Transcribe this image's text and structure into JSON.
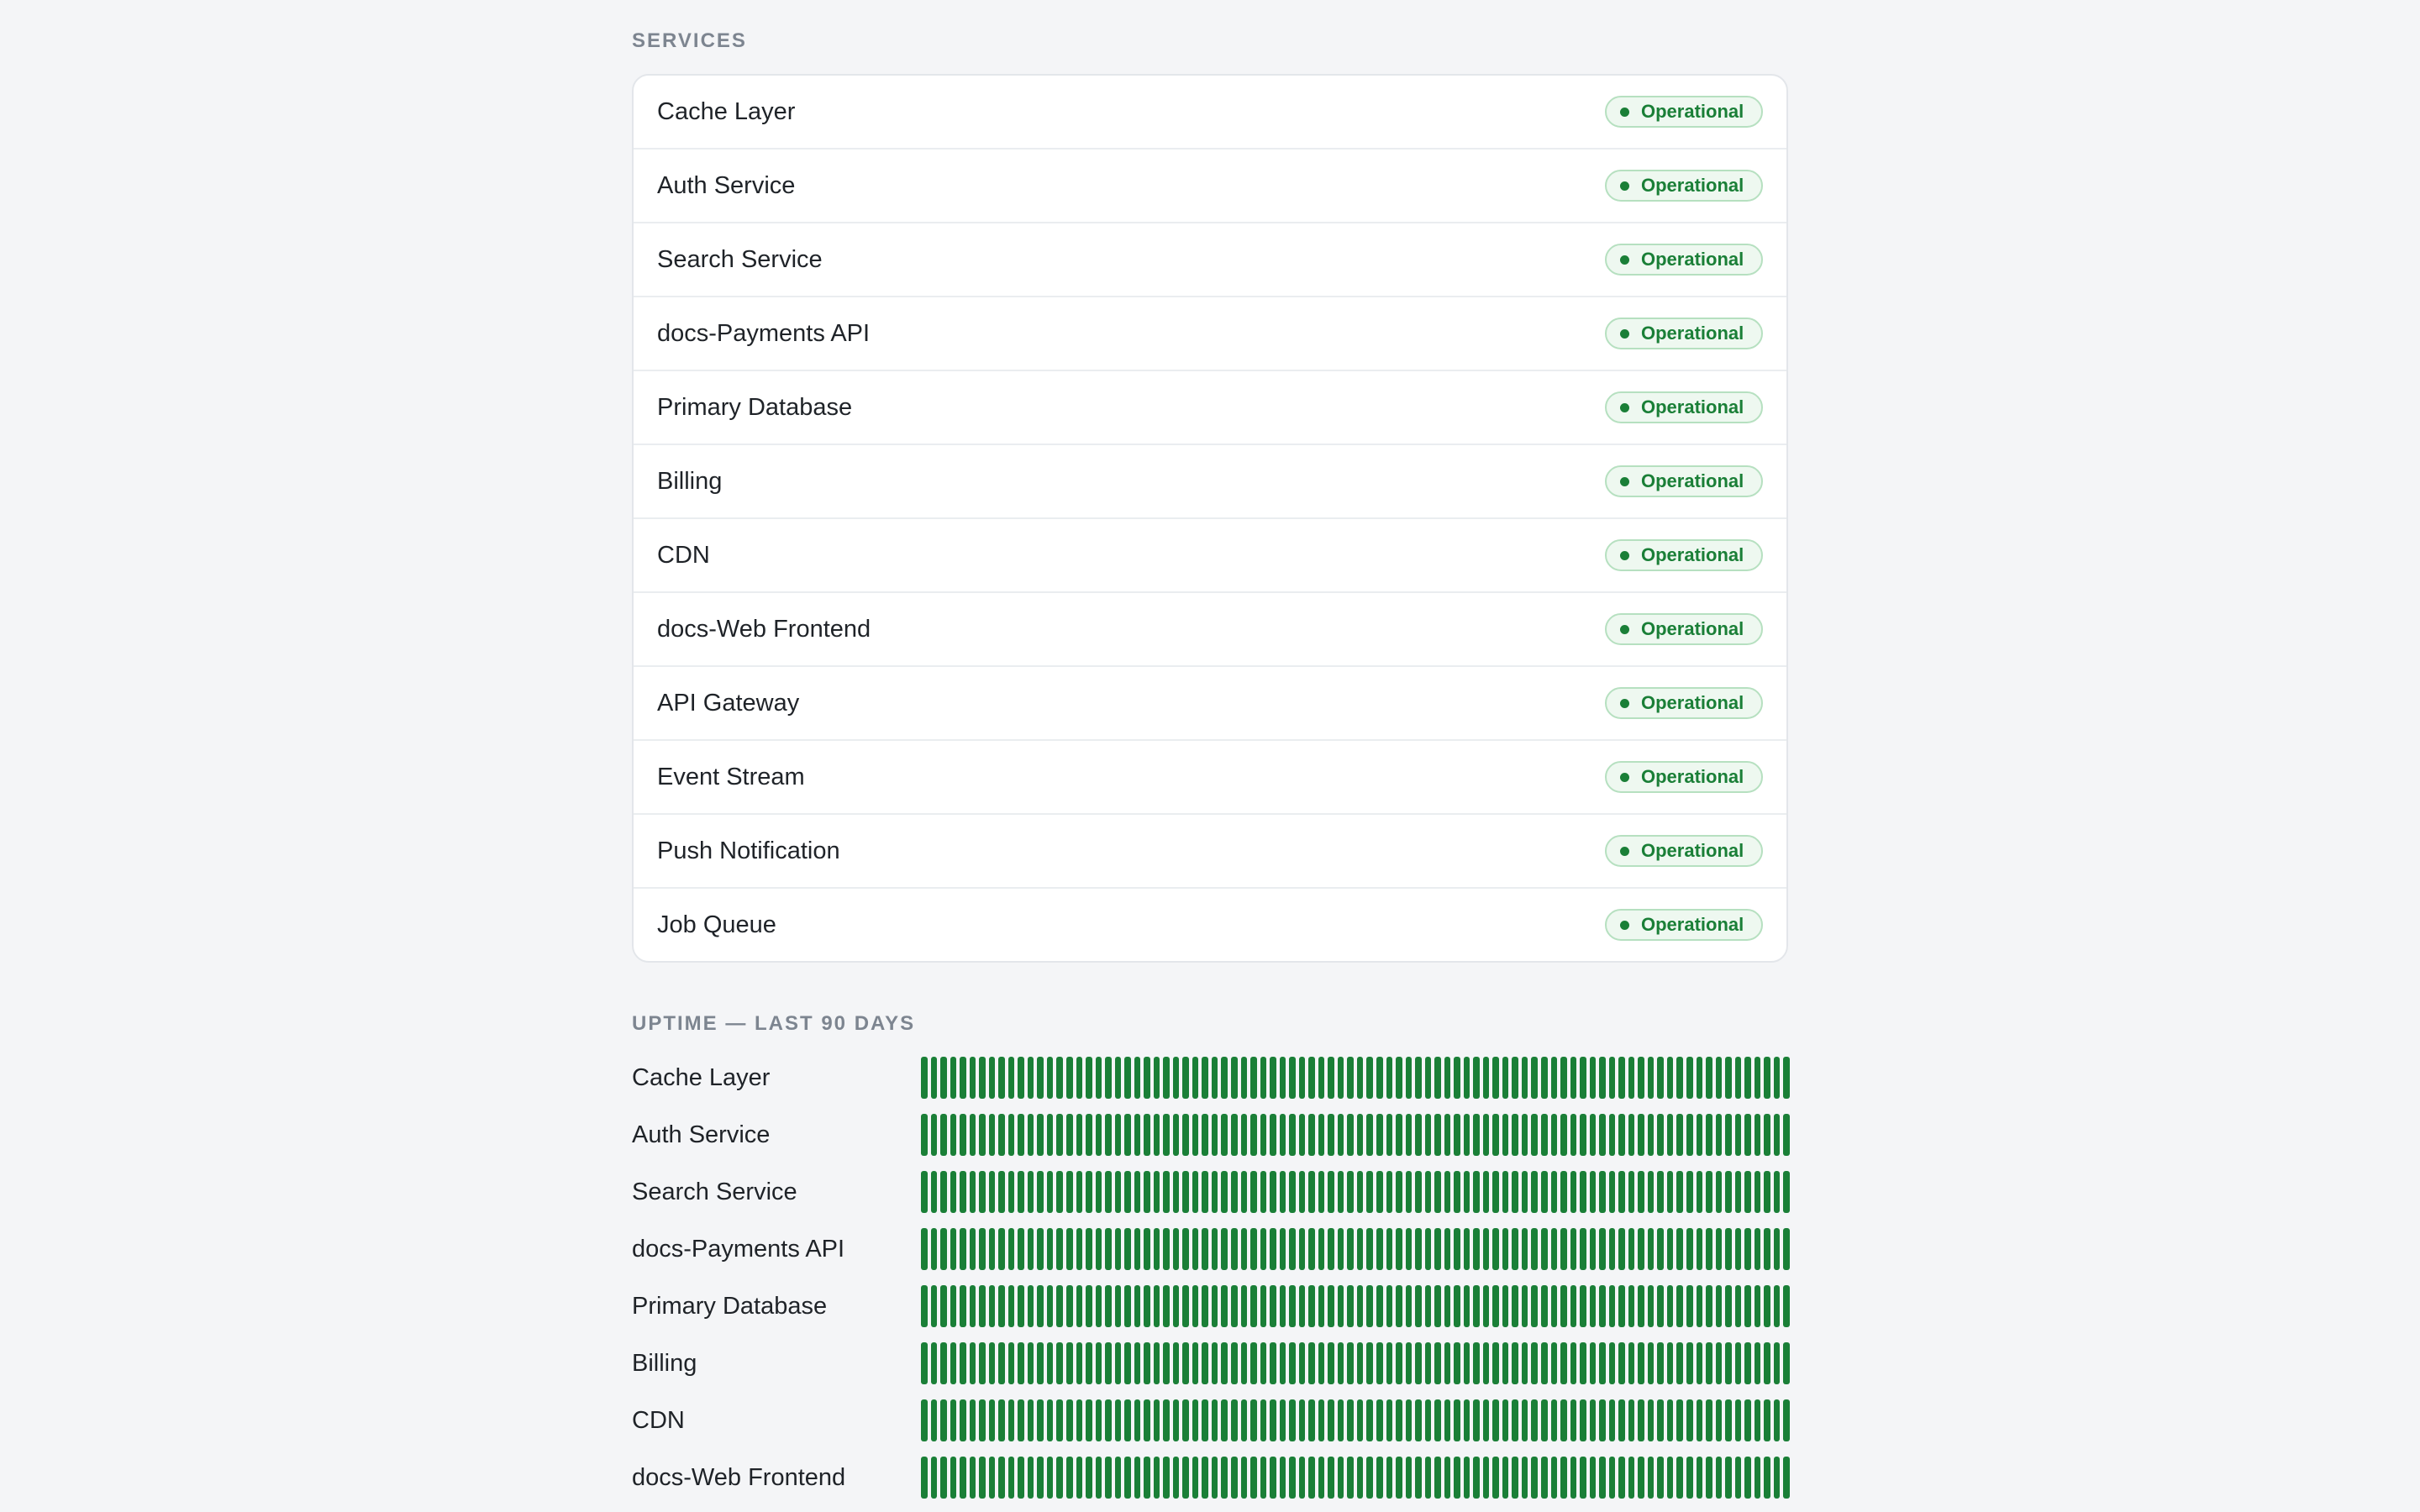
{
  "services_section": {
    "heading": "SERVICES",
    "items": [
      {
        "name": "Cache Layer",
        "status": "Operational"
      },
      {
        "name": "Auth Service",
        "status": "Operational"
      },
      {
        "name": "Search Service",
        "status": "Operational"
      },
      {
        "name": "docs-Payments API",
        "status": "Operational"
      },
      {
        "name": "Primary Database",
        "status": "Operational"
      },
      {
        "name": "Billing",
        "status": "Operational"
      },
      {
        "name": "CDN",
        "status": "Operational"
      },
      {
        "name": "docs-Web Frontend",
        "status": "Operational"
      },
      {
        "name": "API Gateway",
        "status": "Operational"
      },
      {
        "name": "Event Stream",
        "status": "Operational"
      },
      {
        "name": "Push Notification",
        "status": "Operational"
      },
      {
        "name": "Job Queue",
        "status": "Operational"
      }
    ]
  },
  "uptime_section": {
    "heading": "UPTIME — LAST 90 DAYS",
    "days": 90,
    "bar_color": "#1a7f37",
    "rows": [
      {
        "name": "Cache Layer"
      },
      {
        "name": "Auth Service"
      },
      {
        "name": "Search Service"
      },
      {
        "name": "docs-Payments API"
      },
      {
        "name": "Primary Database"
      },
      {
        "name": "Billing"
      },
      {
        "name": "CDN"
      },
      {
        "name": "docs-Web Frontend"
      }
    ]
  },
  "colors": {
    "operational": "#1a7f37",
    "badge_bg": "#eef8f0",
    "badge_border": "#b6e0c0",
    "page_bg": "#f4f5f7"
  }
}
